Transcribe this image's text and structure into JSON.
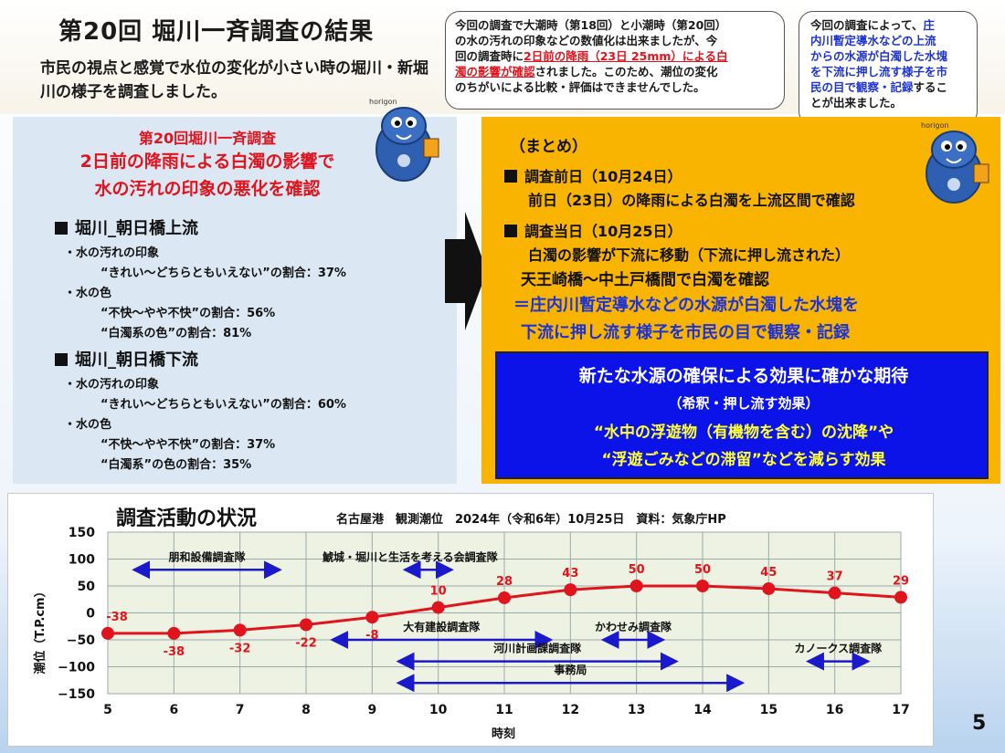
{
  "slide": {
    "title": "第20回 堀川一斉調査の結果",
    "subtitle": "市民の視点と感覚で水位の変化が小さい時の堀川・新堀川の様子を調査しました。",
    "page_number": "5"
  },
  "bubble1": {
    "line1": "今回の調査で大潮時（第18回）と小潮時（第20回）",
    "line2": "の水の汚れの印象などの数値化は出来ましたが、今",
    "line3_pre": "回の調査時に",
    "line3_red": "2日前の降雨（23日 25mm）による白",
    "line4_red": "濁の影響が確認",
    "line4_post": "されました。このため、潮位の変化",
    "line5": "のちがいによる比較・評価はできませんでした。"
  },
  "bubble2": {
    "line1_pre": "今回の調査によって、",
    "line1_blue": "庄",
    "line2_blue": "内川暫定導水などの上流",
    "line3_blue": "からの水源が白濁した水塊",
    "line4_blue": "を下流に押し流す様子を市",
    "line5_blue": "民の目で観察・記録",
    "line5_post": "するこ",
    "line6": "とが出来ました。"
  },
  "mascot": {
    "label": "horigon"
  },
  "left": {
    "head1": "第20回堀川一斉調査",
    "head2": "2日前の降雨による白濁の影響で",
    "head3": "水の汚れの印象の悪化を確認",
    "sec1": {
      "title": "堀川_朝日橋上流",
      "l1": "・水の汚れの印象",
      "l2": "“きれい～どちらともいえない”の割合：37%",
      "l3": "・水の色",
      "l4": "“不快～やや不快”の割合：56%",
      "l5": "“白濁系の色”の割合：81%"
    },
    "sec2": {
      "title": "堀川_朝日橋下流",
      "l1": "・水の汚れの印象",
      "l2": "“きれい～どちらともいえない”の割合：60%",
      "l3": "・水の色",
      "l4": "“不快～やや不快”の割合：37%",
      "l5": "“白濁系”の色の割合：35%"
    }
  },
  "right": {
    "summary": "（まとめ）",
    "p1_title": "調査前日（10月24日）",
    "p1_text": "前日（23日）の降雨による白濁を上流区間で確認",
    "p2_title": "調査当日（10月25日）",
    "p2_text1": "白濁の影響が下流に移動（下流に押し流された）",
    "p2_text2": "天王崎橋～中土戸橋間で白濁を確認",
    "p2_text3": "＝庄内川暫定導水などの水源が白濁した水塊を",
    "p2_text4": "下流に押し流す様子を市民の目で観察・記録",
    "box1": "新たな水源の確保による効果に確かな期待",
    "box2": "（希釈・押し流す効果）",
    "box3": "“水中の浮遊物（有機物を含む）の沈降”や",
    "box4": "“浮遊ごみなどの滞留”などを減らす効果"
  },
  "chart_data": {
    "type": "line",
    "title": "調査活動の状況",
    "subtitle": "名古屋港　観測潮位　2024年（令和6年）10月25日　資料：気象庁HP",
    "xlabel": "時刻",
    "ylabel": "潮位（T.P.cm）",
    "x": [
      5,
      6,
      7,
      8,
      9,
      10,
      11,
      12,
      13,
      14,
      15,
      16,
      17
    ],
    "values": [
      -38,
      -38,
      -32,
      -22,
      -8,
      10,
      28,
      43,
      50,
      50,
      45,
      37,
      29
    ],
    "data_labels": [
      "-38",
      "-38",
      "-32",
      "-22",
      "-8",
      "10",
      "28",
      "43",
      "50",
      "50",
      "45",
      "37",
      "29"
    ],
    "xlim": [
      5,
      17
    ],
    "ylim": [
      -150,
      150
    ],
    "yticks": [
      150,
      100,
      50,
      0,
      -50,
      -100,
      -150
    ],
    "yticklabels": [
      "150",
      "100",
      "50",
      "0",
      "−50",
      "−100",
      "−150"
    ],
    "grid": true,
    "line_color": "#e0141d",
    "activities": [
      {
        "name": "朋和設備調査隊",
        "start": 5.5,
        "end": 7.5,
        "y": 80
      },
      {
        "name": "鯱城・堀川と生活を考える会調査隊",
        "start": 9.6,
        "end": 10.1,
        "y": 80
      },
      {
        "name": "大有建設調査隊",
        "start": 8.5,
        "end": 11.6,
        "y": -50
      },
      {
        "name": "かわせみ調査隊",
        "start": 12.6,
        "end": 13.3,
        "y": -50
      },
      {
        "name": "河川計画課調査隊",
        "start": 9.5,
        "end": 13.5,
        "y": -90
      },
      {
        "name": "カノークス調査隊",
        "start": 15.7,
        "end": 16.4,
        "y": -90
      },
      {
        "name": "事務局",
        "start": 9.5,
        "end": 14.5,
        "y": -130
      }
    ],
    "activity_color": "#1a1acc"
  }
}
